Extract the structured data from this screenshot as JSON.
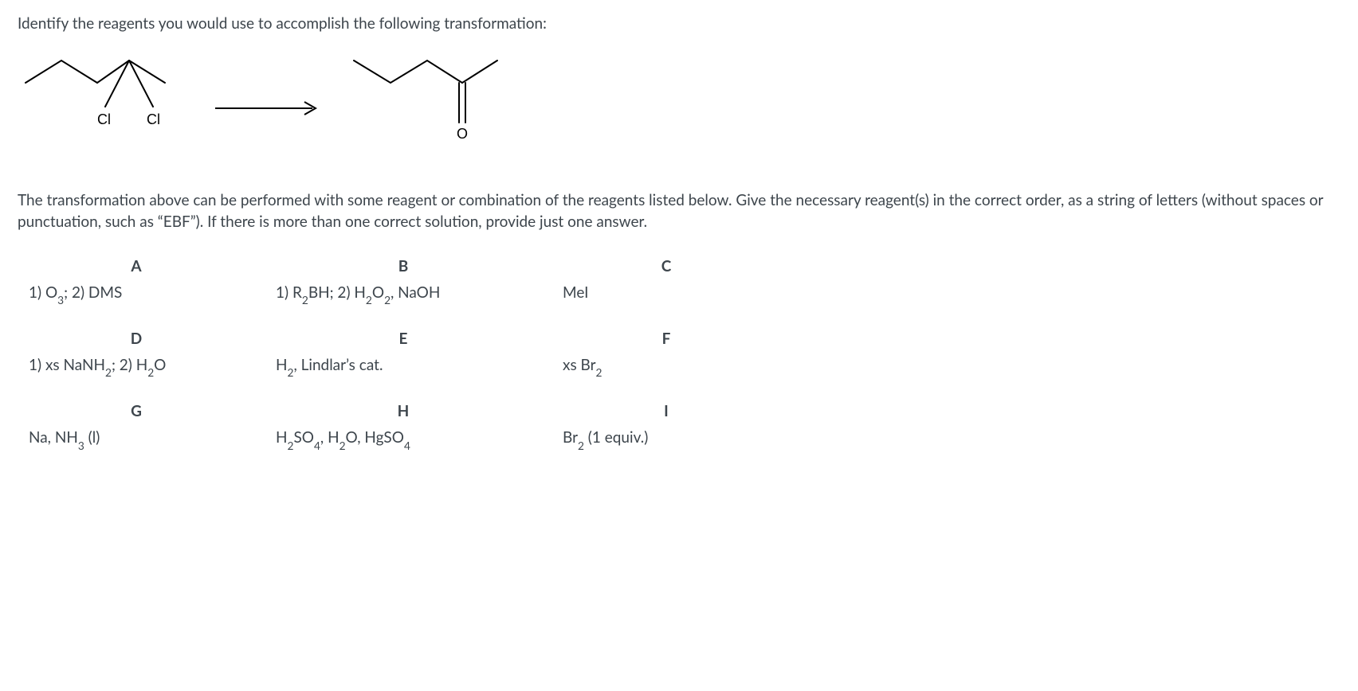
{
  "question_stem": "Identify the reagents you would use to accomplish the following transformation:",
  "explanation": "The transformation above can be performed with some reagent or combination of the reagents listed below. Give the necessary reagent(s) in the correct order, as a string of letters (without spaces or punctuation, such as “EBF”). If there is more than one correct solution, provide just one answer.",
  "scheme": {
    "reactant_label_cl_left": "Cl",
    "reactant_label_cl_right": "Cl",
    "product_label_o": "O",
    "stroke_color": "#000000",
    "stroke_width": 2,
    "label_font_size": 18,
    "reactant_svg_w": 220,
    "reactant_svg_h": 160,
    "arrow_svg_w": 140,
    "arrow_svg_h": 30,
    "product_svg_w": 230,
    "product_svg_h": 160
  },
  "table": {
    "headers": [
      "A",
      "B",
      "C",
      "D",
      "E",
      "F",
      "G",
      "H",
      "I"
    ],
    "values_html": [
      "1) O<sub>3</sub>; 2) DMS",
      "1) R<sub>2</sub>BH; 2) H<sub>2</sub>O<sub>2</sub>, NaOH",
      "MeI",
      "1) xs NaNH<sub>2</sub>; 2) H<sub>2</sub>O",
      "H<sub>2</sub>, Lindlar’s cat.",
      "xs Br<sub>2</sub>",
      "Na, NH<sub>3</sub> (l)",
      "H<sub>2</sub>SO<sub>4</sub>, H<sub>2</sub>O, HgSO<sub>4</sub>",
      "Br<sub>2</sub> (1 equiv.)"
    ]
  },
  "colors": {
    "text": "#3d454c",
    "background": "#ffffff"
  },
  "typography": {
    "body_font_size": 19,
    "header_weight": 700
  }
}
